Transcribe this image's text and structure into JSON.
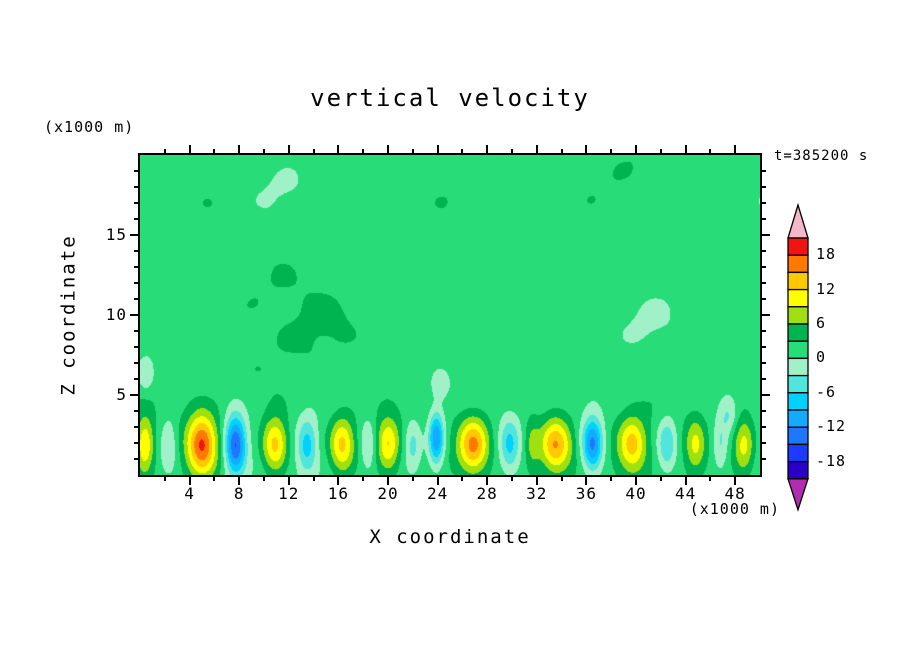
{
  "title": "vertical velocity",
  "timestamp": "t=385200 s",
  "axes": {
    "x_label": "X coordinate",
    "y_label": "Z coordinate",
    "x_unit": "(x1000 m)",
    "y_unit": "(x1000 m)"
  },
  "chart_data": {
    "type": "heatmap",
    "title": "vertical velocity",
    "xlabel": "X coordinate (x1000 m)",
    "ylabel": "Z coordinate (x1000 m)",
    "time_label": "t=385200 s",
    "x_range": [
      0,
      50
    ],
    "z_range": [
      0,
      20
    ],
    "x_ticks": [
      "4",
      "8",
      "12",
      "16",
      "20",
      "24",
      "28",
      "32",
      "36",
      "40",
      "44",
      "48"
    ],
    "x_minor_step": 2,
    "z_ticks": [
      "5",
      "10",
      "15"
    ],
    "z_minor_step": 1,
    "contour_interval": 3,
    "contour_levels": [
      -21,
      -18,
      -15,
      -12,
      -9,
      -6,
      -3,
      0,
      3,
      6,
      9,
      12,
      15,
      18,
      21
    ],
    "colorbar_labels": [
      "18",
      "12",
      "6",
      "0",
      "-6",
      "-12",
      "-18"
    ],
    "band_colors_low_to_high": [
      "#2800C8",
      "#1E3CFF",
      "#1E78FF",
      "#14AAFF",
      "#00D2FF",
      "#50E6DC",
      "#A0F0C8",
      "#28DC78",
      "#00B450",
      "#A0E010",
      "#FFFF00",
      "#FFC800",
      "#FF7800",
      "#F01414"
    ],
    "under_color": "#B02CB0",
    "over_color": "#F5B8C8",
    "frame_color": "#000000",
    "field_model": {
      "background": 1.7,
      "waves": [
        {
          "a": 0.95,
          "fx": 0.32,
          "px": 0.8,
          "fz": 0.42,
          "pz": 0.7
        },
        {
          "a": 0.75,
          "fx": 0.14,
          "px": 2.9,
          "fz": 0.27,
          "pz": 2.3
        },
        {
          "a": 0.65,
          "fx": 0.62,
          "px": 4.2,
          "fz": 0.8,
          "pz": 0.4
        },
        {
          "a": 0.45,
          "fx": 1.05,
          "px": 1.7,
          "fz": 1.5,
          "pz": 1.2
        }
      ],
      "cells": [
        {
          "x": 0.4,
          "amp": 10,
          "sx": 0.5
        },
        {
          "x": 2.3,
          "amp": -5.5,
          "sx": 0.5
        },
        {
          "x": 5.0,
          "amp": 16,
          "sx": 0.85,
          "sz": 1.35
        },
        {
          "x": 7.7,
          "amp": -17,
          "sx": 0.6,
          "sz": 1.3
        },
        {
          "x": 10.9,
          "amp": 13,
          "sx": 0.75
        },
        {
          "x": 13.5,
          "amp": -8,
          "sx": 0.55
        },
        {
          "x": 16.3,
          "amp": 11,
          "sx": 0.7
        },
        {
          "x": 18.4,
          "amp": -5,
          "sx": 0.45
        },
        {
          "x": 20.0,
          "amp": 10,
          "sx": 0.65
        },
        {
          "x": 22.0,
          "amp": -6,
          "sx": 0.5
        },
        {
          "x": 23.9,
          "amp": -14,
          "sx": 0.45,
          "z": 2.3
        },
        {
          "x": 26.9,
          "amp": 13.5,
          "sx": 0.85
        },
        {
          "x": 29.8,
          "amp": -7.5,
          "sx": 0.55
        },
        {
          "x": 31.6,
          "amp": 5.5,
          "sx": 0.45
        },
        {
          "x": 33.5,
          "amp": 14,
          "sx": 0.9
        },
        {
          "x": 36.5,
          "amp": -15,
          "sx": 0.6
        },
        {
          "x": 39.7,
          "amp": 11,
          "sx": 0.8
        },
        {
          "x": 42.5,
          "amp": -8,
          "sx": 0.55
        },
        {
          "x": 44.8,
          "amp": 7,
          "sx": 0.55
        },
        {
          "x": 46.8,
          "amp": -5,
          "sx": 0.45
        },
        {
          "x": 48.7,
          "amp": 9,
          "sx": 0.6
        },
        {
          "x": 0.5,
          "z": 6.2,
          "amp": -4.5,
          "sx": 0.45,
          "sz": 0.7
        },
        {
          "x": 24.2,
          "z": 5.6,
          "amp": -4.2,
          "sx": 0.5,
          "sz": 0.6
        },
        {
          "x": 47.5,
          "z": 3.8,
          "amp": -4.5,
          "sx": 0.5,
          "sz": 0.8
        }
      ]
    }
  }
}
